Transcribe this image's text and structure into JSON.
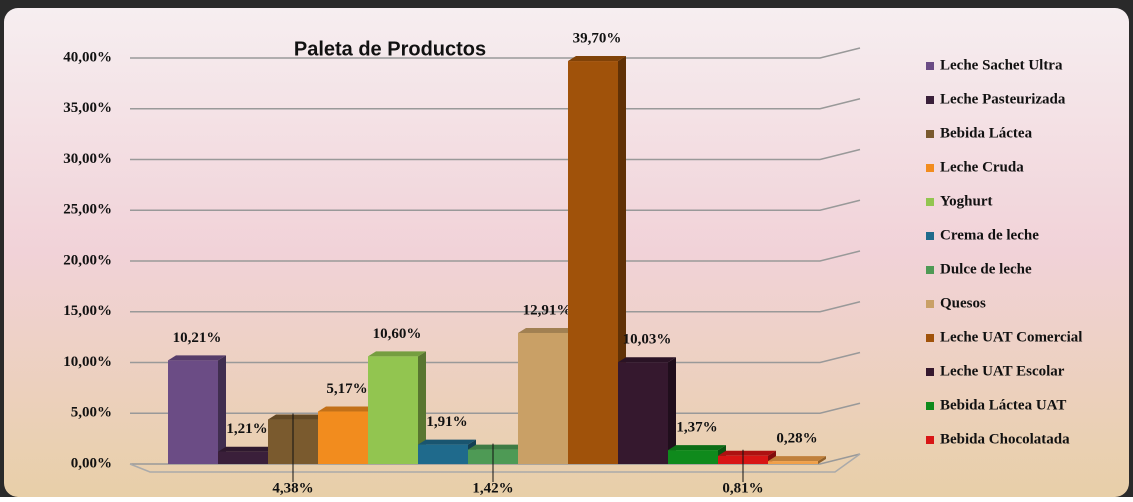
{
  "chart_data": {
    "type": "bar3d",
    "title": "Paleta de Productos",
    "categories": [
      "Leche Sachet Ultra",
      "Leche Pasteurizada",
      "Bebida Láctea",
      "Leche Cruda",
      "Yoghurt",
      "Crema de leche",
      "Dulce de leche",
      "Quesos",
      "Leche UAT Comercial",
      "Leche UAT Escolar",
      "Bebida Láctea UAT",
      "Bebida Chocolatada",
      null
    ],
    "values": [
      10.21,
      1.21,
      4.38,
      5.17,
      10.6,
      1.91,
      1.42,
      12.91,
      39.7,
      10.03,
      1.37,
      0.81,
      0.28
    ],
    "value_labels": [
      "10,21%",
      "1,21%",
      "4,38%",
      "5,17%",
      "10,60%",
      "1,91%",
      "1,42%",
      "12,91%",
      "39,70%",
      "10,03%",
      "1,37%",
      "0,81%",
      "0,28%"
    ],
    "colors": [
      "#6b4c85",
      "#3a1f3a",
      "#7a5a2e",
      "#f28c1e",
      "#92c550",
      "#1f6a8c",
      "#4e9a55",
      "#c9a066",
      "#a0520a",
      "#35182e",
      "#0f8a1c",
      "#d81515",
      "#f0a04a"
    ],
    "ylim": [
      0,
      40
    ],
    "yticks": [
      {
        "value": 0,
        "label": "0,00%"
      },
      {
        "value": 5,
        "label": "5,00%"
      },
      {
        "value": 10,
        "label": "10,00%"
      },
      {
        "value": 15,
        "label": "15,00%"
      },
      {
        "value": 20,
        "label": "20,00%"
      },
      {
        "value": 25,
        "label": "25,00%"
      },
      {
        "value": 30,
        "label": "30,00%"
      },
      {
        "value": 35,
        "label": "35,00%"
      },
      {
        "value": 40,
        "label": "40,00%"
      }
    ],
    "grid": true
  }
}
